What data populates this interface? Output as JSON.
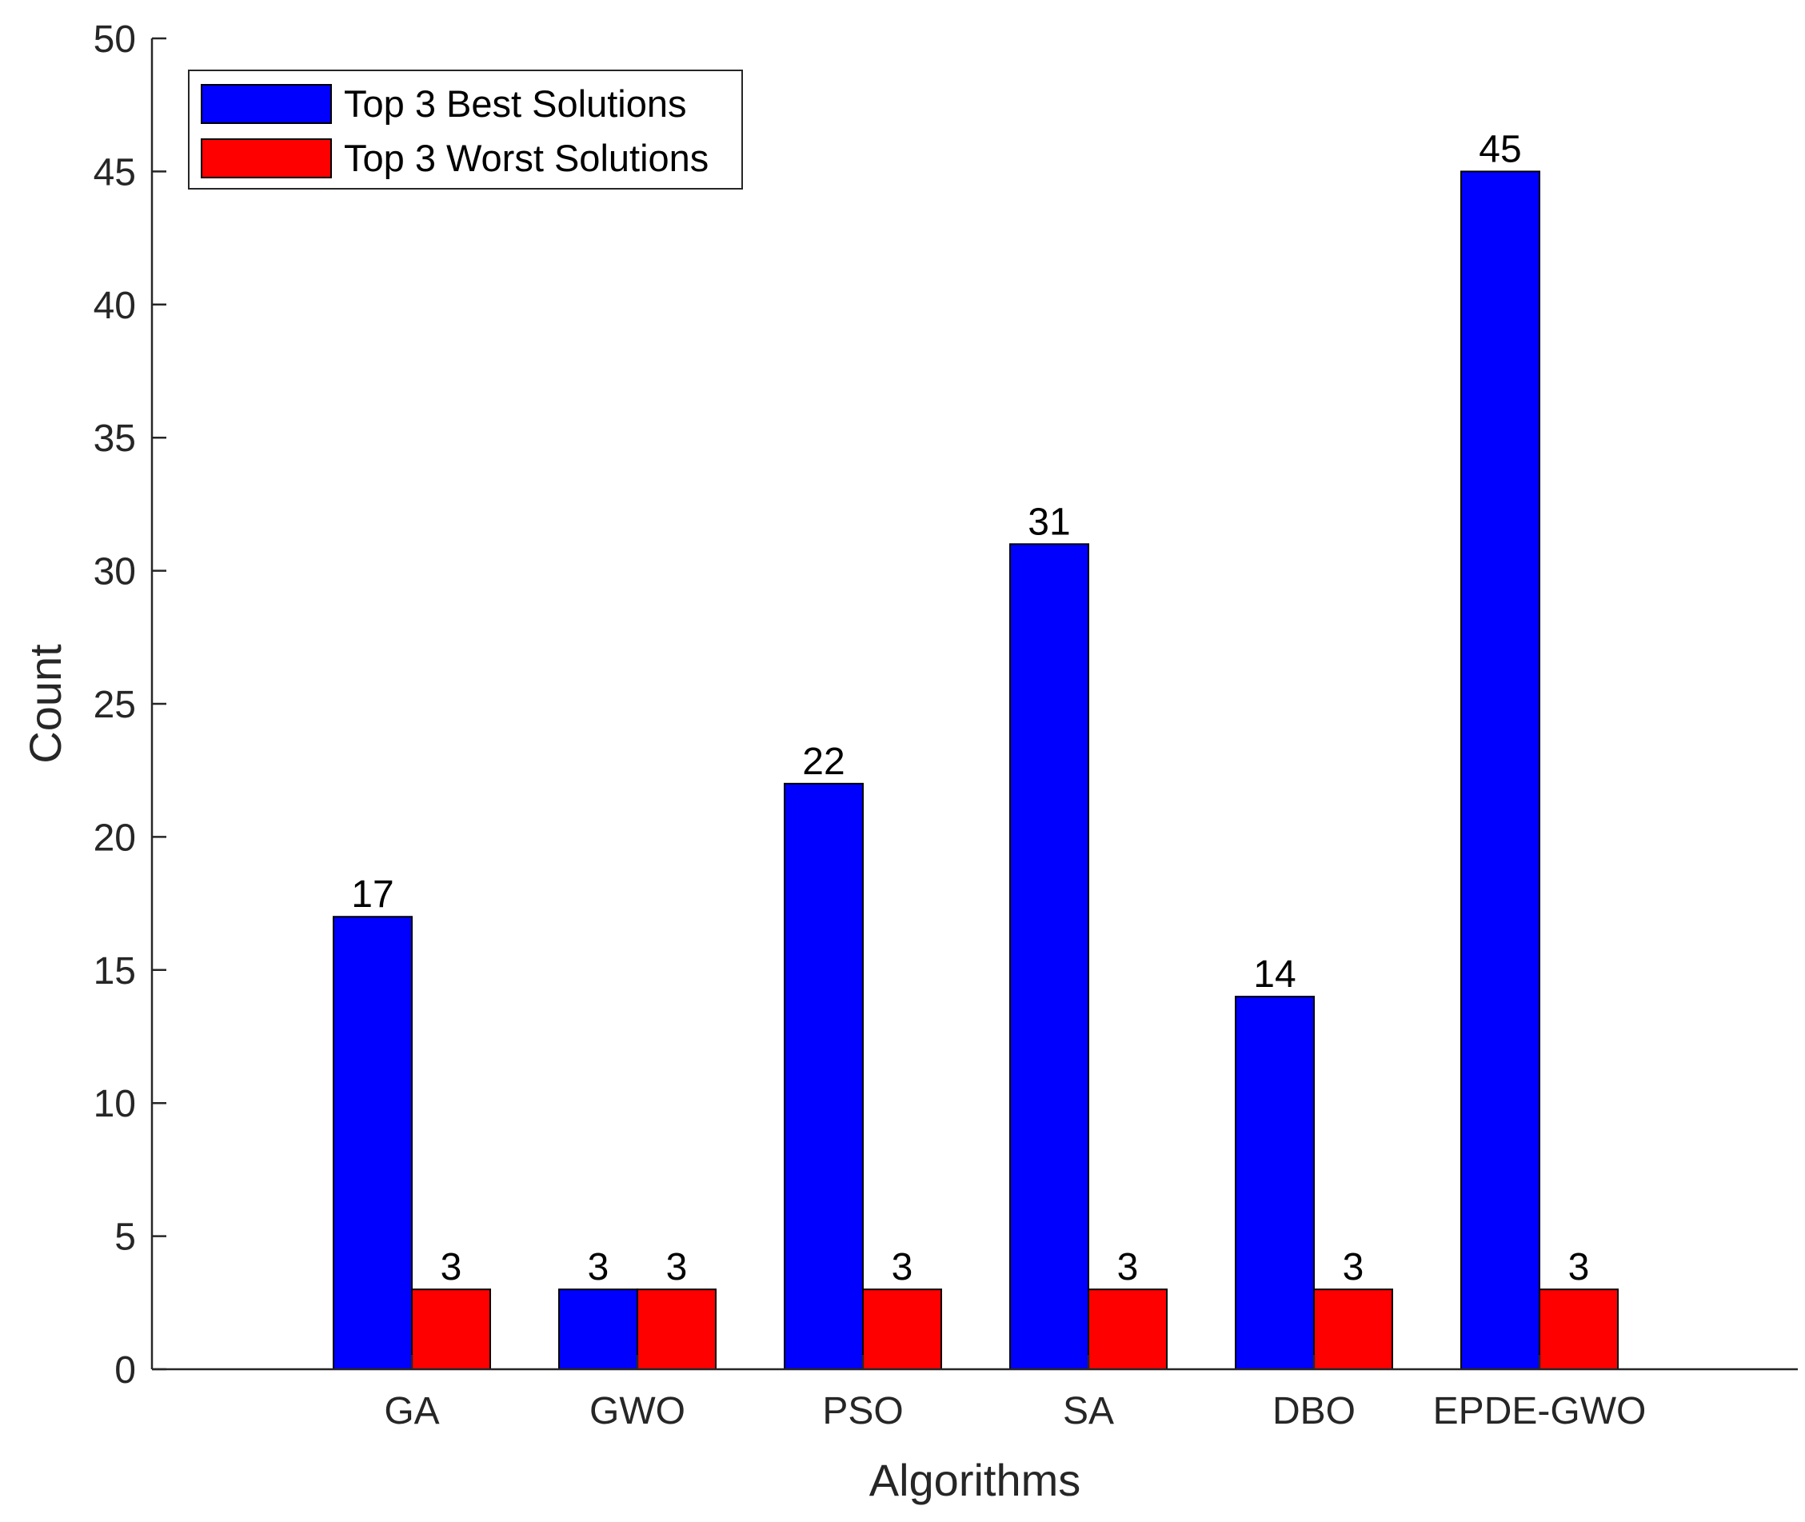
{
  "chart_data": {
    "type": "bar",
    "title": "",
    "xlabel": "Algorithms",
    "ylabel": "Count",
    "categories": [
      "GA",
      "GWO",
      "PSO",
      "SA",
      "DBO",
      "EPDE-GWO"
    ],
    "series": [
      {
        "name": "Top 3 Best Solutions",
        "color": "#0000ff",
        "values": [
          17,
          3,
          22,
          31,
          14,
          45
        ]
      },
      {
        "name": "Top 3 Worst Solutions",
        "color": "#ff0000",
        "values": [
          3,
          3,
          3,
          3,
          3,
          3
        ]
      }
    ],
    "ylim": [
      0,
      50
    ],
    "yticks": [
      0,
      5,
      10,
      15,
      20,
      25,
      30,
      35,
      40,
      45,
      50
    ],
    "grid": false,
    "legend_position": "top-left"
  }
}
